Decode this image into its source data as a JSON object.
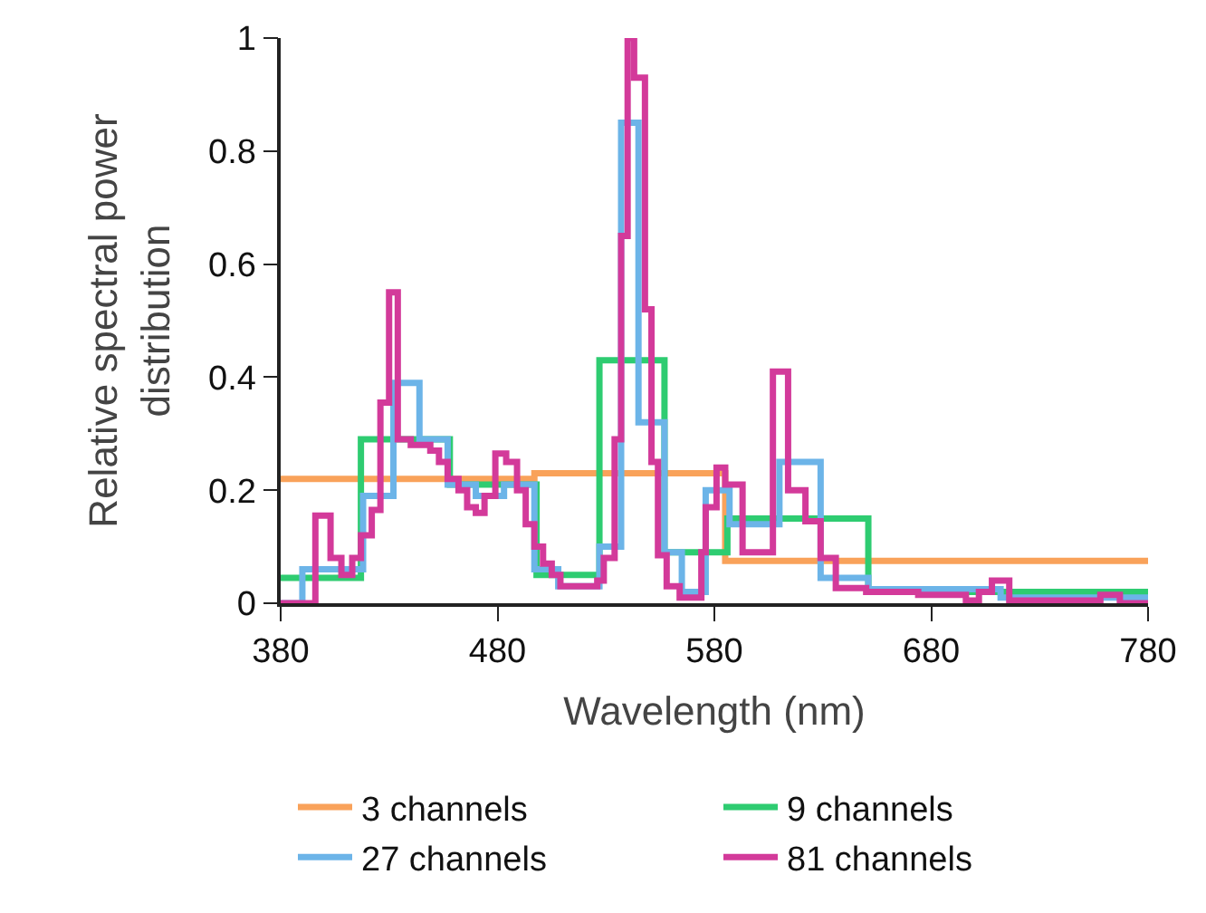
{
  "chart_data": {
    "type": "step",
    "xlabel": "Wavelength (nm)",
    "ylabel": "Relative spectral power distribution",
    "xlim": [
      380,
      780
    ],
    "ylim": [
      0,
      1
    ],
    "xticks": [
      380,
      480,
      580,
      680,
      780
    ],
    "yticks": [
      0,
      0.2,
      0.4,
      0.6,
      0.8,
      1
    ],
    "legend": "bottom",
    "series": [
      {
        "name": "3 channels",
        "color": "#f9a25a",
        "x": [
          380,
          497,
          585,
          780
        ],
        "values": [
          0.22,
          0.23,
          0.075,
          0.075
        ]
      },
      {
        "name": "9 channels",
        "color": "#2ecc71",
        "x": [
          380,
          417,
          458,
          498,
          527,
          557,
          586,
          651,
          780
        ],
        "values": [
          0.045,
          0.29,
          0.21,
          0.05,
          0.43,
          0.09,
          0.15,
          0.02,
          0.02
        ]
      },
      {
        "name": "27 channels",
        "color": "#6cb4e8",
        "x": [
          380,
          390,
          418,
          432,
          444,
          457,
          470,
          483,
          497,
          508,
          527,
          537,
          545,
          557,
          565,
          576,
          587,
          610,
          629,
          651,
          712,
          780
        ],
        "values": [
          0,
          0.06,
          0.19,
          0.39,
          0.29,
          0.21,
          0.19,
          0.21,
          0.06,
          0.03,
          0.1,
          0.85,
          0.32,
          0.09,
          0.02,
          0.2,
          0.14,
          0.25,
          0.045,
          0.025,
          0.01,
          0.01
        ]
      },
      {
        "name": "81 channels",
        "color": "#d33a9a",
        "x": [
          380,
          396,
          403,
          408,
          413,
          417,
          422,
          426,
          430,
          434,
          440,
          449,
          453,
          457,
          462,
          466,
          470,
          474,
          479,
          484,
          489,
          493,
          497,
          501,
          505,
          509,
          526,
          529,
          534,
          537,
          540,
          543,
          548,
          551,
          554,
          558,
          564,
          574,
          576,
          581,
          585,
          593,
          607,
          614,
          622,
          629,
          636,
          650,
          674,
          696,
          702,
          708,
          716,
          758,
          767,
          780
        ],
        "values": [
          0,
          0.155,
          0.08,
          0.05,
          0.08,
          0.12,
          0.165,
          0.355,
          0.55,
          0.29,
          0.28,
          0.27,
          0.25,
          0.22,
          0.2,
          0.17,
          0.16,
          0.19,
          0.265,
          0.25,
          0.2,
          0.14,
          0.1,
          0.07,
          0.05,
          0.03,
          0.04,
          0.08,
          0.29,
          0.65,
          1,
          0.93,
          0.52,
          0.25,
          0.085,
          0.03,
          0.01,
          0.09,
          0.17,
          0.24,
          0.21,
          0.09,
          0.41,
          0.2,
          0.145,
          0.08,
          0.027,
          0.02,
          0.015,
          0.005,
          0.02,
          0.04,
          0.005,
          0.015,
          0,
          0
        ]
      }
    ]
  }
}
